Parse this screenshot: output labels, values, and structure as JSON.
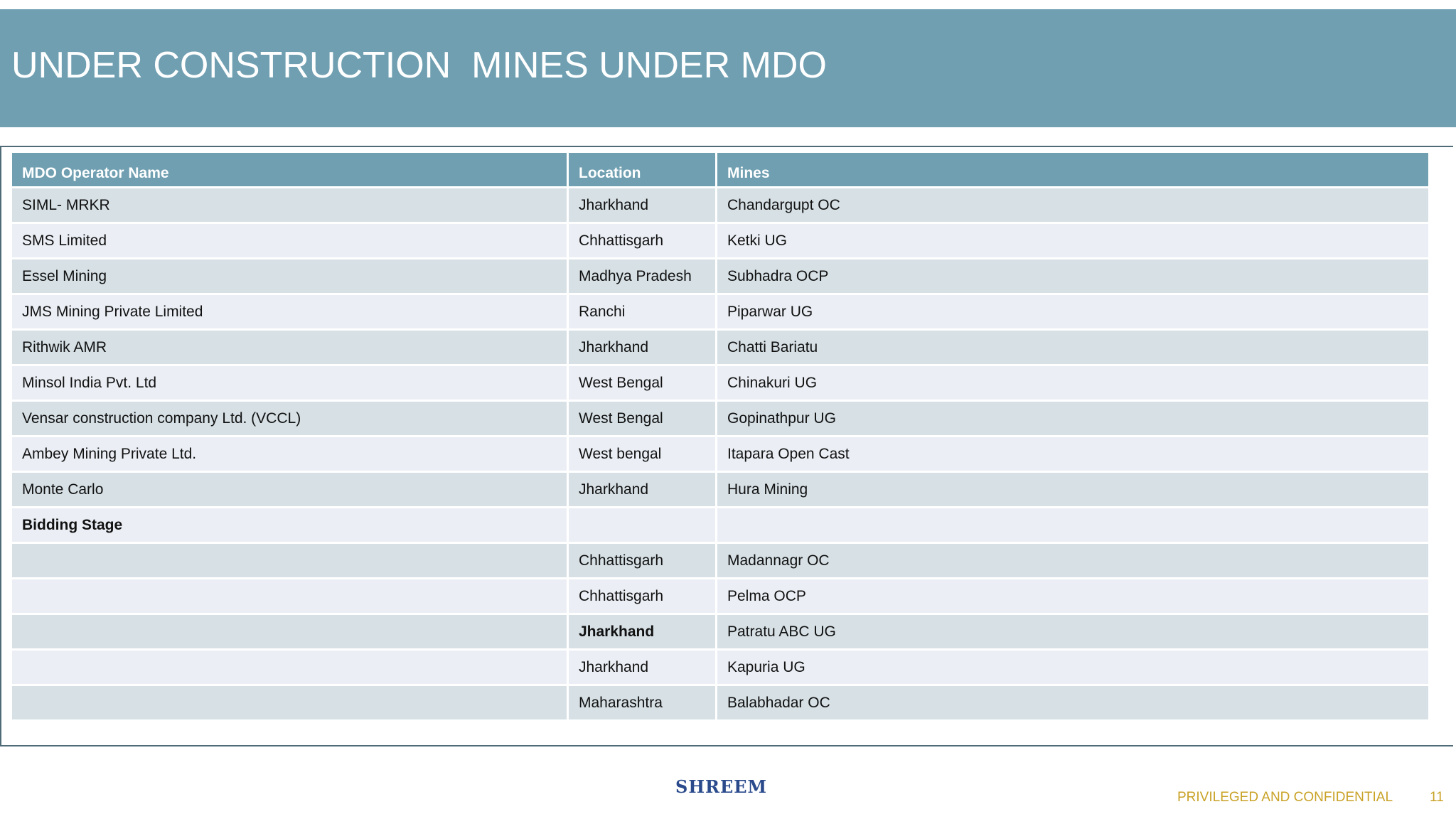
{
  "header": {
    "title": "UNDER CONSTRUCTION  MINES UNDER MDO"
  },
  "table": {
    "columns": [
      "MDO Operator Name",
      "Location",
      "Mines"
    ],
    "rows": [
      [
        "SIML- MRKR",
        "Jharkhand",
        "Chandargupt OC"
      ],
      [
        "SMS Limited",
        "Chhattisgarh",
        "Ketki UG"
      ],
      [
        "Essel Mining",
        "Madhya Pradesh",
        "Subhadra OCP"
      ],
      [
        "JMS Mining Private Limited",
        "Ranchi",
        "Piparwar UG"
      ],
      [
        "Rithwik AMR",
        "Jharkhand",
        "Chatti Bariatu"
      ],
      [
        "Minsol India Pvt. Ltd",
        "West Bengal",
        "Chinakuri UG"
      ],
      [
        "Vensar construction company Ltd. (VCCL)",
        "West Bengal",
        "Gopinathpur UG"
      ],
      [
        "Ambey Mining Private Ltd.",
        "West bengal",
        "Itapara Open Cast"
      ],
      [
        "Monte Carlo",
        "Jharkhand",
        "Hura Mining"
      ],
      [
        "Bidding Stage",
        null,
        null
      ],
      [
        null,
        "Chhattisgarh",
        "Madannagr OC"
      ],
      [
        null,
        "Chhattisgarh",
        "Pelma OCP"
      ],
      [
        null,
        "Jharkhand",
        "Patratu ABC UG"
      ],
      [
        null,
        "Jharkhand",
        "Kapuria UG"
      ],
      [
        null,
        "Maharashtra",
        "Balabhadar OC"
      ]
    ]
  },
  "footer": {
    "logo": "SHREEM",
    "notice": "PRIVILEGED AND CONFIDENTIAL",
    "page": "11"
  }
}
